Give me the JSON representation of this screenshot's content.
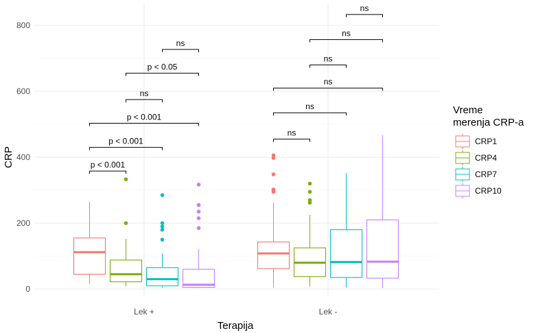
{
  "chart_data": {
    "type": "boxplot",
    "title": "",
    "xlabel": "Terapija",
    "ylabel": "CRP",
    "ylim": [
      -20,
      840
    ],
    "y_ticks": [
      0,
      200,
      400,
      600,
      800
    ],
    "categories": [
      "Lek +",
      "Lek -"
    ],
    "legend": {
      "title_lines": [
        "Vreme",
        "merenja CRP-a"
      ],
      "placement": "right"
    },
    "series": [
      {
        "name": "CRP1",
        "color": "#F8766D",
        "boxes": [
          {
            "category": "Lek +",
            "lower_whisker": 15,
            "q1": 45,
            "median": 112,
            "q3": 155,
            "upper_whisker": 265,
            "outliers": []
          },
          {
            "category": "Lek -",
            "lower_whisker": 5,
            "q1": 62,
            "median": 108,
            "q3": 143,
            "upper_whisker": 262,
            "outliers": [
              295,
              300,
              302,
              348,
              398,
              406
            ]
          }
        ]
      },
      {
        "name": "CRP4",
        "color": "#7CAE00",
        "boxes": [
          {
            "category": "Lek +",
            "lower_whisker": 8,
            "q1": 22,
            "median": 45,
            "q3": 88,
            "upper_whisker": 152,
            "outliers": [
              200,
              333
            ]
          },
          {
            "category": "Lek -",
            "lower_whisker": 8,
            "q1": 38,
            "median": 80,
            "q3": 125,
            "upper_whisker": 225,
            "outliers": [
              262,
              270,
              295,
              320
            ]
          }
        ]
      },
      {
        "name": "CRP7",
        "color": "#00BFC4",
        "boxes": [
          {
            "category": "Lek +",
            "lower_whisker": 5,
            "q1": 10,
            "median": 30,
            "q3": 65,
            "upper_whisker": 108,
            "outliers": [
              150,
              180,
              190,
              200,
              285
            ]
          },
          {
            "category": "Lek -",
            "lower_whisker": 5,
            "q1": 35,
            "median": 82,
            "q3": 180,
            "upper_whisker": 352,
            "outliers": []
          }
        ]
      },
      {
        "name": "CRP10",
        "color": "#C77CFF",
        "boxes": [
          {
            "category": "Lek +",
            "lower_whisker": 3,
            "q1": 5,
            "median": 13,
            "q3": 60,
            "upper_whisker": 122,
            "outliers": [
              185,
              215,
              235,
              255,
              317
            ]
          },
          {
            "category": "Lek -",
            "lower_whisker": 3,
            "q1": 33,
            "median": 83,
            "q3": 210,
            "upper_whisker": 467,
            "outliers": []
          }
        ]
      }
    ],
    "comparisons": [
      {
        "category": "Lek +",
        "from": "CRP1",
        "to": "CRP4",
        "y": 358,
        "label": "p < 0.001"
      },
      {
        "category": "Lek +",
        "from": "CRP1",
        "to": "CRP7",
        "y": 430,
        "label": "p < 0.001"
      },
      {
        "category": "Lek +",
        "from": "CRP1",
        "to": "CRP10",
        "y": 503,
        "label": "p < 0.001"
      },
      {
        "category": "Lek +",
        "from": "CRP4",
        "to": "CRP7",
        "y": 575,
        "label": "ns"
      },
      {
        "category": "Lek +",
        "from": "CRP4",
        "to": "CRP10",
        "y": 655,
        "label": "p < 0.05"
      },
      {
        "category": "Lek +",
        "from": "CRP7",
        "to": "CRP10",
        "y": 727,
        "label": "ns"
      },
      {
        "category": "Lek -",
        "from": "CRP1",
        "to": "CRP4",
        "y": 455,
        "label": "ns"
      },
      {
        "category": "Lek -",
        "from": "CRP1",
        "to": "CRP7",
        "y": 535,
        "label": "ns"
      },
      {
        "category": "Lek -",
        "from": "CRP1",
        "to": "CRP10",
        "y": 610,
        "label": "ns"
      },
      {
        "category": "Lek -",
        "from": "CRP4",
        "to": "CRP7",
        "y": 680,
        "label": "ns"
      },
      {
        "category": "Lek -",
        "from": "CRP4",
        "to": "CRP10",
        "y": 757,
        "label": "ns"
      },
      {
        "category": "Lek -",
        "from": "CRP7",
        "to": "CRP10",
        "y": 833,
        "label": "ns"
      }
    ]
  }
}
